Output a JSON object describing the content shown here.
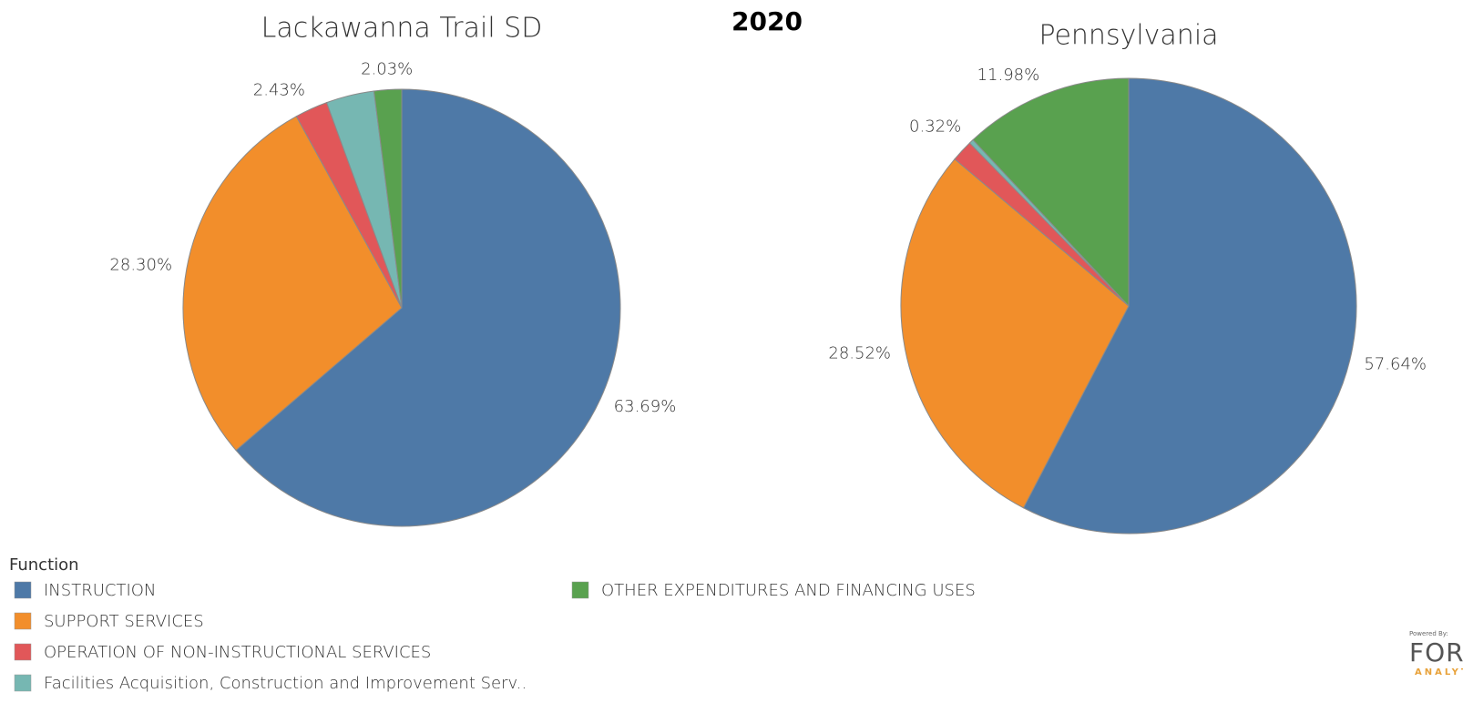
{
  "title": "2020",
  "legend": {
    "title": "Function"
  },
  "logo": {
    "small": "Powered By:",
    "name": "FORECA",
    "sub": "ANALYTICS"
  },
  "chart_data": [
    {
      "type": "pie",
      "title": "Lackawanna Trail SD",
      "categories": [
        "INSTRUCTION",
        "SUPPORT SERVICES",
        "OPERATION OF NON-INSTRUCTIONAL SERVICES",
        "Facilities Acquisition, Construction and Improvement Serv..",
        "OTHER EXPENDITURES AND FINANCING USES"
      ],
      "colors": [
        "#4e79a7",
        "#f28e2b",
        "#e15759",
        "#76b7b2",
        "#59a14f"
      ],
      "values": [
        63.69,
        28.3,
        2.43,
        3.55,
        2.03
      ],
      "value_labels": [
        "63.69%",
        "28.30%",
        "2.43%",
        null,
        "2.03%"
      ]
    },
    {
      "type": "pie",
      "title": "Pennsylvania",
      "categories": [
        "INSTRUCTION",
        "SUPPORT SERVICES",
        "OPERATION OF NON-INSTRUCTIONAL SERVICES",
        "Facilities Acquisition, Construction and Improvement Serv..",
        "OTHER EXPENDITURES AND FINANCING USES"
      ],
      "colors": [
        "#4e79a7",
        "#f28e2b",
        "#e15759",
        "#76b7b2",
        "#59a14f"
      ],
      "values": [
        57.64,
        28.52,
        1.54,
        0.32,
        11.98
      ],
      "value_labels": [
        "57.64%",
        "28.52%",
        null,
        "0.32%",
        "11.98%"
      ]
    }
  ]
}
